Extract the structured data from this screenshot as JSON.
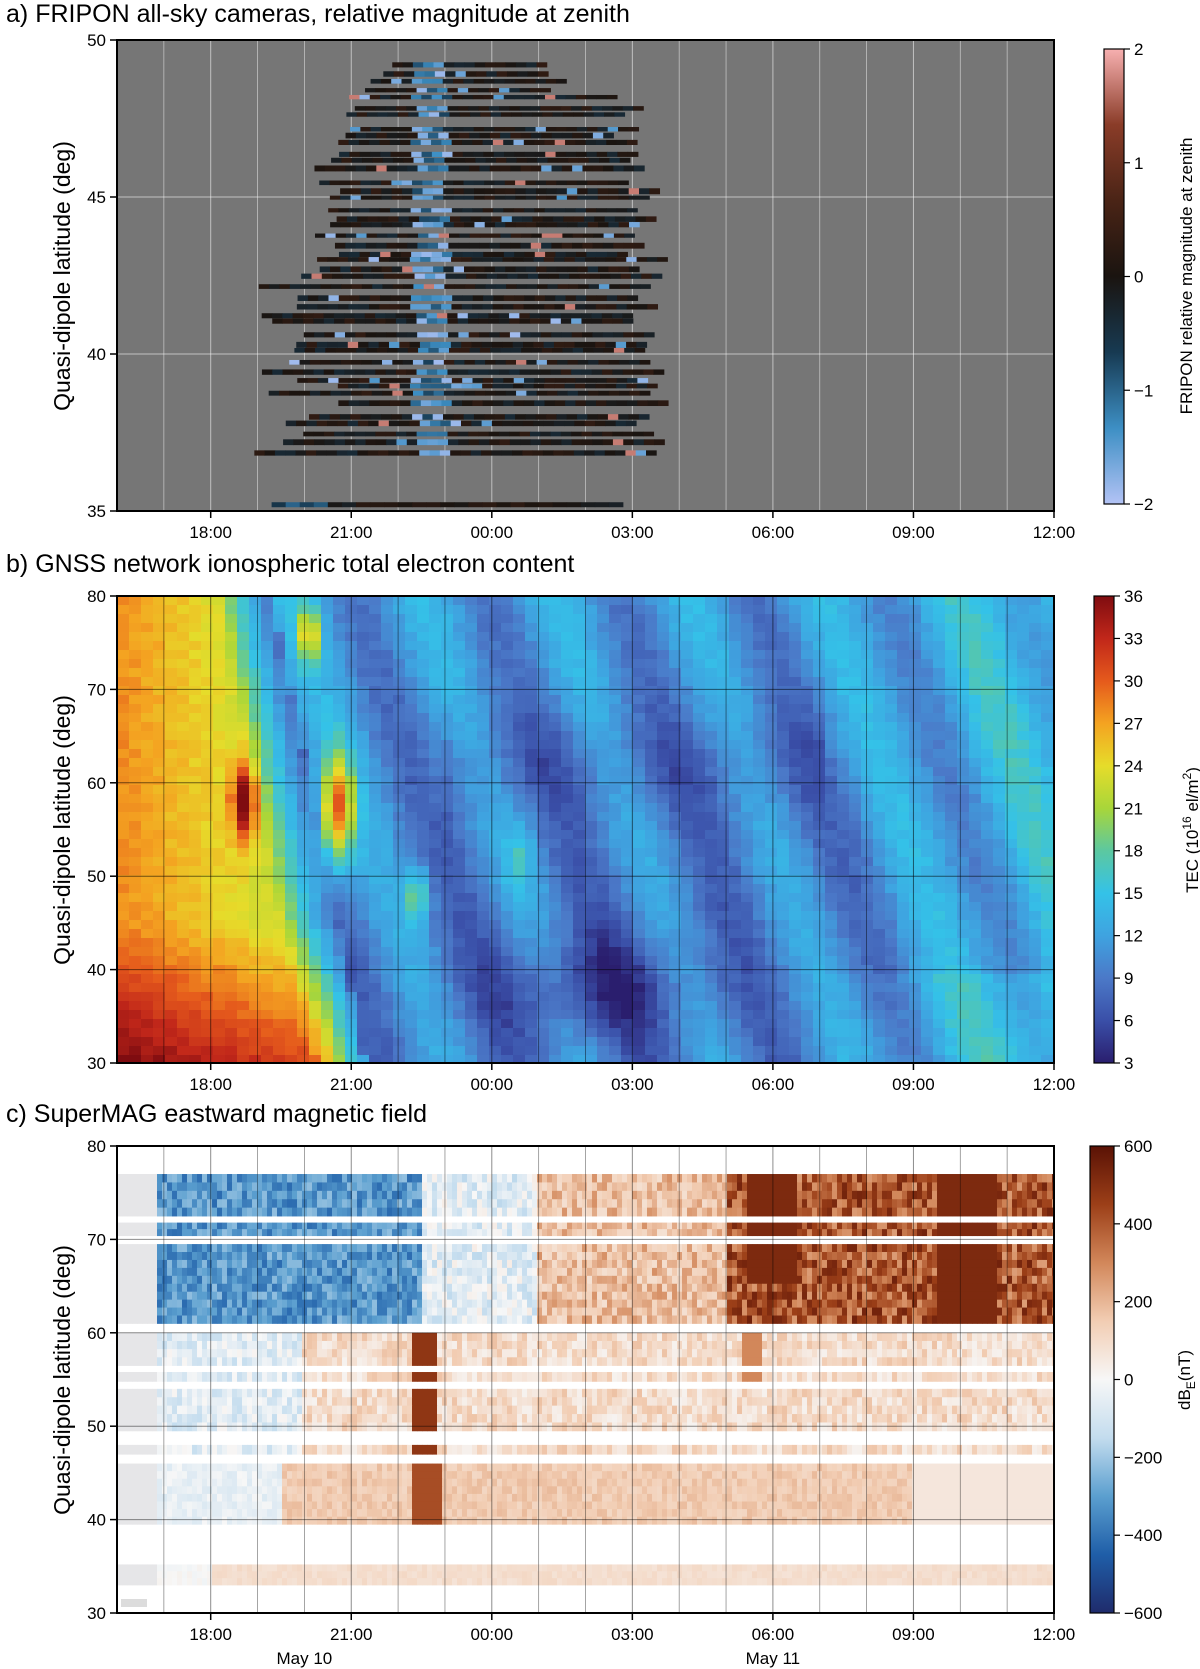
{
  "chart_data": [
    {
      "type": "heatmap",
      "panel_label": "a)",
      "title": "FRIPON all-sky cameras, relative magnitude at zenith",
      "ylabel": "Quasi-dipole latitude (deg)",
      "ylim": [
        35,
        50
      ],
      "yticks": [
        "35",
        "40",
        "45",
        "50"
      ],
      "xlim_hours": [
        16,
        36
      ],
      "xticks": [
        "18:00",
        "21:00",
        "00:00",
        "03:00",
        "06:00",
        "09:00",
        "12:00"
      ],
      "background_color": "#767676",
      "colorbar": {
        "label": "FRIPON relative magnitude at zenith",
        "range": [
          -2,
          2
        ],
        "ticks": [
          "2",
          "1",
          "0",
          "−1",
          "−2"
        ],
        "colors": [
          "#b3c3f5",
          "#3d8fc4",
          "#173a52",
          "#1a1410",
          "#4a2416",
          "#8a3c28",
          "#f7b0b0"
        ]
      },
      "observations": {
        "latitude_range": [
          36.8,
          49.4
        ],
        "time_range_hours": [
          19.0,
          27.5
        ],
        "isolated_track": {
          "latitude": 35.2,
          "time_range_hours": [
            19.3,
            26.6
          ]
        },
        "bright_column_hours": 22.6
      }
    },
    {
      "type": "heatmap",
      "panel_label": "b)",
      "title": "GNSS network ionospheric total electron content",
      "ylabel": "Quasi-dipole latitude (deg)",
      "ylim": [
        30,
        80
      ],
      "yticks": [
        "30",
        "40",
        "50",
        "60",
        "70",
        "80"
      ],
      "xlim_hours": [
        16,
        36
      ],
      "xticks": [
        "18:00",
        "21:00",
        "00:00",
        "03:00",
        "06:00",
        "09:00",
        "12:00"
      ],
      "colorbar": {
        "label": "TEC (10",
        "label_exp": "16",
        "label_rest": " el/m",
        "label_exp2": "2",
        "label_end": ")",
        "range": [
          3,
          36
        ],
        "ticks": [
          "36",
          "33",
          "30",
          "27",
          "24",
          "21",
          "18",
          "15",
          "12",
          "9",
          "6",
          "3"
        ],
        "colors": [
          "#2a1e6e",
          "#3a4fa8",
          "#4b79c8",
          "#3fa3e0",
          "#34c2e8",
          "#5cc8a0",
          "#a8d63a",
          "#e6dc2a",
          "#f4a321",
          "#e55a1c",
          "#c1271a",
          "#7f0c10"
        ]
      },
      "features": {
        "high_tec_region": "dusk, low latitude, before 21:00",
        "depletion_minimum": {
          "time": "02:00",
          "latitude": 38
        },
        "enhancement_ridges": [
          "18:40",
          "20:30",
          "22:30"
        ]
      }
    },
    {
      "type": "heatmap",
      "panel_label": "c)",
      "title": "SuperMAG eastward magnetic field",
      "ylabel": "Quasi-dipole latitude (deg)",
      "ylim": [
        30,
        80
      ],
      "yticks": [
        "30",
        "40",
        "50",
        "60",
        "70",
        "80"
      ],
      "xlim_hours": [
        16,
        36
      ],
      "xticks": [
        "18:00",
        "21:00",
        "00:00",
        "03:00",
        "06:00",
        "09:00",
        "12:00"
      ],
      "date_labels": [
        {
          "hour": 20,
          "text": "May 10"
        },
        {
          "hour": 30,
          "text": "May 11"
        }
      ],
      "colorbar": {
        "label": "dB",
        "label_sub": "E",
        "label_end": "(nT)",
        "range": [
          -600,
          600
        ],
        "ticks": [
          "600",
          "400",
          "200",
          "0",
          "−200",
          "−400",
          "−600"
        ],
        "colors": [
          "#1f2b6b",
          "#1f5ea8",
          "#5b9fcf",
          "#c3dcee",
          "#f7f7f7",
          "#f2cdb3",
          "#d2875a",
          "#9c3f18",
          "#5a1205"
        ]
      },
      "latitude_bands": [
        [
          33,
          35.2
        ],
        [
          39.5,
          46
        ],
        [
          47,
          48
        ],
        [
          49.5,
          54
        ],
        [
          54.8,
          55.8
        ],
        [
          56.5,
          60
        ],
        [
          61,
          69.5
        ],
        [
          70.4,
          71.8
        ],
        [
          72.5,
          77
        ]
      ],
      "features": {
        "westward_perturbation": "high latitude, 17:00–22:00",
        "eastward_perturbation": "after 05:00 at high latitude",
        "strong_eastward_column_hours": 22.6
      }
    }
  ]
}
